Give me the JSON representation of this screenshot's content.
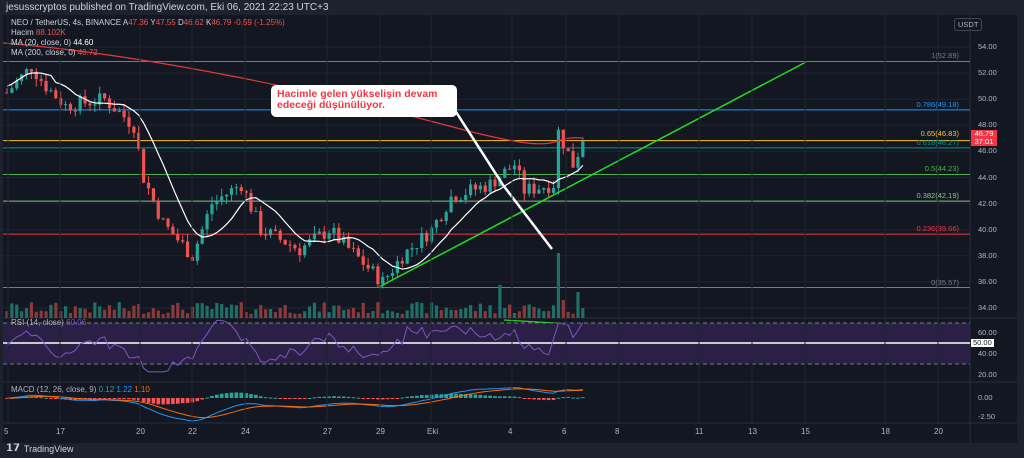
{
  "header": {
    "publisher": "jesusscryptos published on TradingView.com, Eki 06, 2021 22:23 UTC+3"
  },
  "legend": {
    "symbol": "NEO / TetherUS, 4s, BINANCE",
    "o_label": "A",
    "o": "47.36",
    "h_label": "Y",
    "h": "47.55",
    "l_label": "D",
    "l": "46.62",
    "c_label": "K",
    "c": "46.79",
    "change": "-0.59 (-1.25%)",
    "volume_label": "Hacim",
    "volume": "88.102K",
    "ma20_label": "MA (20, close, 0)",
    "ma20": "44.60",
    "ma200_label": "MA (200, close, 0)",
    "ma200": "46.72"
  },
  "callout": {
    "text": "Hacimle gelen yükselişin devam edeceği düşünülüyor."
  },
  "price_axis": {
    "currency": "USDT",
    "ticks": [
      "54.00",
      "52.00",
      "50.00",
      "48.00",
      "46.00",
      "44.00",
      "42.00",
      "40.00",
      "38.00",
      "36.00",
      "34.00"
    ],
    "tick_values": [
      54,
      52,
      50,
      48,
      46,
      44,
      42,
      40,
      38,
      36,
      34
    ],
    "last_price": "46.79",
    "countdown": "37:01",
    "last_color": "#f23645"
  },
  "fib_levels": [
    {
      "label": "1(52.89)",
      "price": 52.89,
      "color": "#787b86"
    },
    {
      "label": "0.786(49.18)",
      "price": 49.18,
      "color": "#2196f3"
    },
    {
      "label": "0.65(46.83)",
      "price": 46.83,
      "color": "#fbc02d"
    },
    {
      "label": "0.618(46.27)",
      "price": 46.27,
      "color": "#009688"
    },
    {
      "label": "0.5(44.23)",
      "price": 44.23,
      "color": "#4caf50"
    },
    {
      "label": "0.382(42.19)",
      "price": 42.19,
      "color": "#81c784"
    },
    {
      "label": "0.236(39.66)",
      "price": 39.66,
      "color": "#f23645"
    },
    {
      "label": "0(35.57)",
      "price": 35.57,
      "color": "#787b86"
    }
  ],
  "rsi": {
    "label": "RSI (14, close)",
    "value": "60.06",
    "ticks": [
      "60.00",
      "40.00",
      "20.00"
    ],
    "mid_label": "50.00"
  },
  "macd": {
    "label": "MACD (12, 26, close, 9)",
    "hist": "0.12",
    "macd": "1.22",
    "signal": "1.10",
    "ticks": [
      "0.00",
      "-2.50"
    ]
  },
  "time_axis": [
    "5",
    "17",
    "20",
    "22",
    "24",
    "27",
    "29",
    "Eki",
    "4",
    "6",
    "8",
    "11",
    "13",
    "15",
    "18",
    "20"
  ],
  "footer": {
    "brand": "TradingView"
  },
  "colors": {
    "up": "#26a69a",
    "down": "#ef5350",
    "ma20": "#ffffff",
    "ma200": "#e53935",
    "trend": "#22dd22"
  },
  "chart_data": {
    "type": "candlestick",
    "price_path": [
      [
        0,
        50.5
      ],
      [
        5,
        52.5
      ],
      [
        8,
        51
      ],
      [
        12,
        49.5
      ],
      [
        20,
        50
      ],
      [
        26,
        48
      ],
      [
        28,
        44
      ],
      [
        32,
        40.5
      ],
      [
        38,
        38
      ],
      [
        42,
        42
      ],
      [
        48,
        43.5
      ],
      [
        52,
        40
      ],
      [
        60,
        38.5
      ],
      [
        66,
        40
      ],
      [
        77,
        36
      ],
      [
        81,
        38
      ],
      [
        87,
        40
      ],
      [
        91,
        42.5
      ],
      [
        99,
        43.5
      ],
      [
        104,
        45
      ],
      [
        106,
        43
      ],
      [
        112,
        43.5
      ],
      [
        113,
        47.5
      ],
      [
        116,
        45
      ],
      [
        118,
        46.8
      ]
    ]
  }
}
